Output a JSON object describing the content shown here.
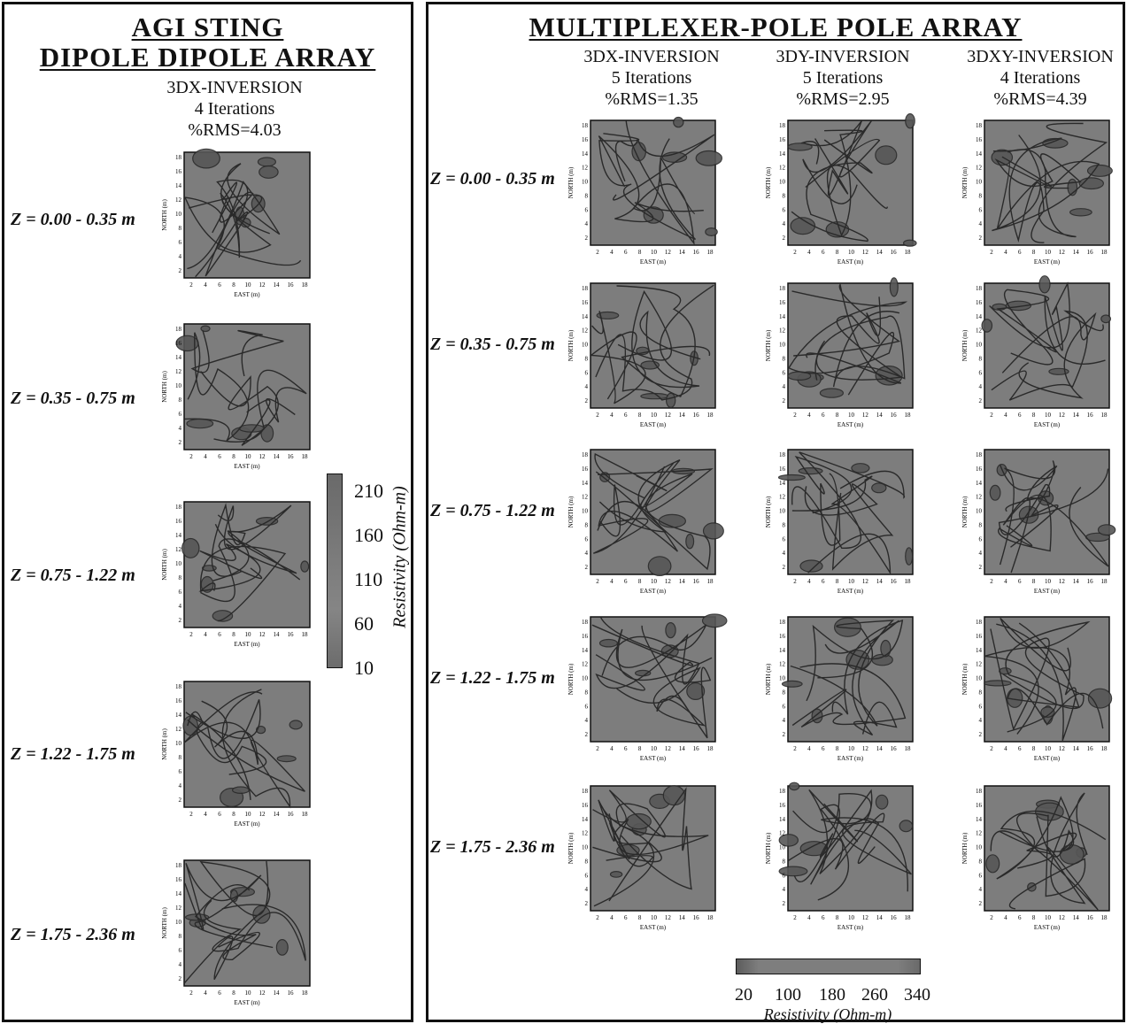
{
  "left_panel": {
    "title_line1": "AGI STING",
    "title_line2": "DIPOLE DIPOLE ARRAY",
    "inversion": {
      "method": "3DX-INVERSION",
      "iterations": "4 Iterations",
      "rms": "%RMS=4.03"
    },
    "depths": [
      "Z = 0.00 - 0.35 m",
      "Z = 0.35 - 0.75 m",
      "Z = 0.75 - 1.22 m",
      "Z = 1.22 - 1.75 m",
      "Z = 1.75 - 2.36 m"
    ],
    "colorbar": {
      "ticks": [
        "210",
        "160",
        "110",
        "60",
        "10"
      ],
      "label": "Resistivity (Ohm-m)"
    }
  },
  "right_panel": {
    "title": "MULTIPLEXER-POLE POLE ARRAY",
    "columns": [
      {
        "method": "3DX-INVERSION",
        "iterations": "5 Iterations",
        "rms": "%RMS=1.35"
      },
      {
        "method": "3DY-INVERSION",
        "iterations": "5 Iterations",
        "rms": "%RMS=2.95"
      },
      {
        "method": "3DXY-INVERSION",
        "iterations": "4 Iterations",
        "rms": "%RMS=4.39"
      }
    ],
    "depths": [
      "Z = 0.00 - 0.35 m",
      "Z = 0.35 - 0.75 m",
      "Z = 0.75 - 1.22 m",
      "Z = 1.22 - 1.75 m",
      "Z = 1.75 - 2.36 m"
    ],
    "colorbar": {
      "ticks": [
        "20",
        "100",
        "180",
        "260",
        "340"
      ],
      "label": "Resistivity (Ohm-m)"
    }
  },
  "map_axes": {
    "xlabel": "EAST (m)",
    "ylabel": "NORTH (m)",
    "ticks": [
      "2",
      "4",
      "6",
      "8",
      "10",
      "12",
      "14",
      "16",
      "18"
    ]
  },
  "colors": {
    "map_fill": "#7d7d7d",
    "contour": "#2a2a2a",
    "frame": "#111111"
  }
}
